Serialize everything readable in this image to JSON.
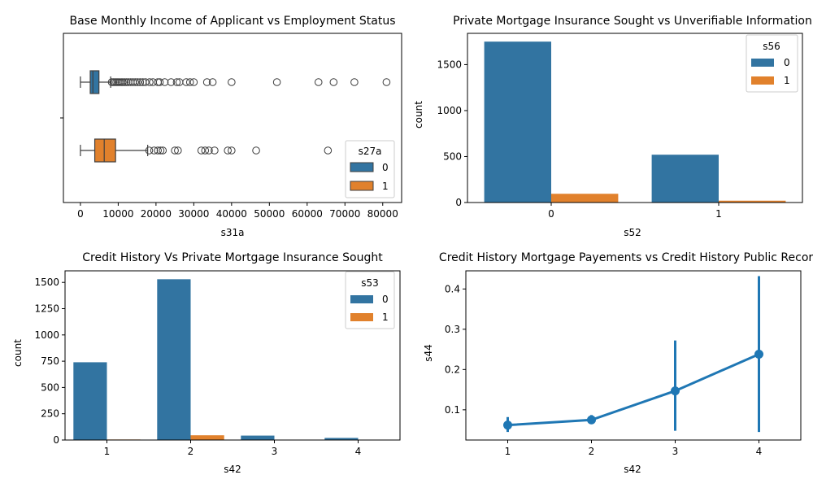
{
  "colors": {
    "blue": "#1f77b4",
    "steel": "#3274a1",
    "orange": "#e1812c",
    "axis": "#000000",
    "outline": "#3f3f3f",
    "text": "#000000"
  },
  "chart_data": [
    {
      "type": "box",
      "title": "Base Monthly Income of Applicant vs Employment Status",
      "xlabel": "s31a",
      "ylabel": "",
      "xlim": [
        -4500,
        85000
      ],
      "xticks": [
        0,
        10000,
        20000,
        30000,
        40000,
        50000,
        60000,
        70000,
        80000
      ],
      "xtick_labels": [
        "0",
        "10000",
        "20000",
        "30000",
        "40000",
        "50000",
        "60000",
        "70000",
        "80000"
      ],
      "legend": {
        "title": "s27a",
        "labels": [
          "0",
          "1"
        ],
        "location": "lower right"
      },
      "series": [
        {
          "name": "0",
          "min": 0,
          "q1": 2600,
          "median": 3300,
          "q3": 4900,
          "max": 8000,
          "outliers": [
            8300,
            8700,
            9100,
            9500,
            9900,
            10300,
            10800,
            11200,
            11700,
            12200,
            12700,
            13300,
            13900,
            14500,
            15100,
            15800,
            16500,
            17200,
            18300,
            19200,
            20500,
            21000,
            22300,
            24000,
            25500,
            26200,
            28000,
            29000,
            30000,
            33500,
            35000,
            40000,
            52000,
            63000,
            67000,
            72500,
            81000
          ]
        },
        {
          "name": "1",
          "min": 0,
          "q1": 3800,
          "median": 6300,
          "q3": 9300,
          "max": 17800,
          "outliers": [
            18200,
            19500,
            20500,
            21200,
            21800,
            25000,
            25800,
            32000,
            33000,
            34000,
            35500,
            39000,
            40000,
            46500,
            65500
          ]
        }
      ]
    },
    {
      "type": "bar",
      "title": "Private Mortgage Insurance Sought vs Unverifiable Information",
      "xlabel": "s52",
      "ylabel": "count",
      "categories": [
        "0",
        "1"
      ],
      "ylim": [
        0,
        1840
      ],
      "yticks": [
        0,
        500,
        1000,
        1500
      ],
      "legend": {
        "title": "s56",
        "location": "upper right"
      },
      "series": [
        {
          "name": "0",
          "values": [
            1750,
            520
          ]
        },
        {
          "name": "1",
          "values": [
            95,
            20
          ]
        }
      ]
    },
    {
      "type": "bar",
      "title": "Credit History Vs Private Mortgage Insurance Sought",
      "xlabel": "s42",
      "ylabel": "count",
      "categories": [
        "1",
        "2",
        "3",
        "4"
      ],
      "ylim": [
        0,
        1610
      ],
      "yticks": [
        0,
        250,
        500,
        750,
        1000,
        1250,
        1500
      ],
      "legend": {
        "title": "s53",
        "location": "upper right"
      },
      "series": [
        {
          "name": "0",
          "values": [
            740,
            1530,
            42,
            20
          ]
        },
        {
          "name": "1",
          "values": [
            5,
            45,
            2,
            1
          ]
        }
      ]
    },
    {
      "type": "line",
      "title": "Credit History Mortgage Payements vs Credit History Public Records",
      "xlabel": "s42",
      "ylabel": "s44",
      "categories": [
        "1",
        "2",
        "3",
        "4"
      ],
      "ylim": [
        0.025,
        0.445
      ],
      "yticks": [
        0.1,
        0.2,
        0.3,
        0.4
      ],
      "ytick_labels": [
        "0.1",
        "0.2",
        "0.3",
        "0.4"
      ],
      "series": [
        {
          "values": [
            0.062,
            0.075,
            0.147,
            0.238
          ],
          "ci_low": [
            0.045,
            0.065,
            0.048,
            0.045
          ],
          "ci_high": [
            0.082,
            0.087,
            0.272,
            0.432
          ]
        }
      ]
    }
  ]
}
